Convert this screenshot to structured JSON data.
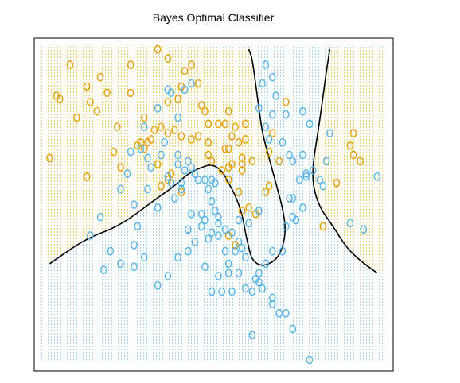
{
  "chart_data": {
    "type": "scatter",
    "title": "Bayes Optimal Classifier",
    "xlabel": "",
    "ylabel": "",
    "axes_visible": false,
    "grid": false,
    "legend": "none",
    "marker": "o",
    "xlim": [
      0,
      100
    ],
    "ylim": [
      0,
      100
    ],
    "colors": {
      "orange": "#E69F00",
      "blue": "#56B4E9",
      "boundary": "#000000",
      "frame": "#000000"
    },
    "background_regions": [
      {
        "class": "orange",
        "color": "#E69F00",
        "pattern": "dotted"
      },
      {
        "class": "blue",
        "color": "#56B4E9",
        "pattern": "dotted"
      }
    ],
    "decision_boundary": [
      {
        "name": "",
        "points": [
          [
            2,
            31
          ],
          [
            6,
            34
          ],
          [
            10,
            37
          ],
          [
            15,
            40
          ],
          [
            20,
            42
          ],
          [
            25,
            45
          ],
          [
            30,
            49
          ],
          [
            35,
            53
          ],
          [
            39,
            56
          ],
          [
            43,
            60
          ],
          [
            47,
            62
          ],
          [
            50,
            63
          ],
          [
            53,
            61
          ],
          [
            55,
            57
          ],
          [
            57,
            53
          ],
          [
            59,
            47
          ],
          [
            60,
            41
          ],
          [
            61,
            36
          ],
          [
            62,
            32
          ],
          [
            65,
            30
          ],
          [
            69,
            32
          ],
          [
            71,
            36
          ],
          [
            72,
            42
          ],
          [
            71,
            49
          ],
          [
            69,
            57
          ],
          [
            67,
            65
          ],
          [
            65,
            73
          ],
          [
            64,
            81
          ],
          [
            63,
            89
          ],
          [
            62,
            97
          ],
          [
            61,
            100
          ]
        ]
      },
      {
        "name": "",
        "points": [
          [
            99,
            28
          ],
          [
            95,
            31
          ],
          [
            90,
            36
          ],
          [
            86,
            43
          ],
          [
            82,
            49
          ],
          [
            80,
            56
          ],
          [
            80,
            63
          ],
          [
            81,
            70
          ],
          [
            82,
            77
          ],
          [
            83,
            85
          ],
          [
            84,
            93
          ],
          [
            85,
            100
          ]
        ]
      }
    ],
    "series": [
      {
        "name": "",
        "color": "#E69F00",
        "points": [
          [
            8,
            95
          ],
          [
            13,
            88
          ],
          [
            17,
            91
          ],
          [
            19,
            86
          ],
          [
            26,
            86
          ],
          [
            26,
            95
          ],
          [
            16,
            80
          ],
          [
            14,
            83
          ],
          [
            5,
            84
          ],
          [
            4,
            85
          ],
          [
            10,
            78
          ],
          [
            30,
            78
          ],
          [
            40,
            84
          ],
          [
            42,
            93
          ],
          [
            44,
            95
          ],
          [
            37,
            97
          ],
          [
            34,
            100
          ],
          [
            37,
            83
          ],
          [
            41,
            88
          ],
          [
            46,
            89
          ],
          [
            47,
            82
          ],
          [
            48,
            80
          ],
          [
            49,
            76
          ],
          [
            52,
            76
          ],
          [
            54,
            76
          ],
          [
            55,
            80
          ],
          [
            54,
            68
          ],
          [
            55,
            62
          ],
          [
            49,
            70
          ],
          [
            46,
            72
          ],
          [
            44,
            71
          ],
          [
            41,
            72
          ],
          [
            39,
            74
          ],
          [
            37,
            73
          ],
          [
            35,
            75
          ],
          [
            33,
            74
          ],
          [
            32,
            71
          ],
          [
            28,
            69
          ],
          [
            29,
            70
          ],
          [
            30,
            68
          ],
          [
            31,
            70
          ],
          [
            23,
            62
          ],
          [
            21,
            67
          ],
          [
            22,
            75
          ],
          [
            34,
            63
          ],
          [
            35,
            56
          ],
          [
            37,
            58
          ],
          [
            38,
            60
          ],
          [
            41,
            54
          ],
          [
            49,
            66
          ],
          [
            50,
            64
          ],
          [
            53,
            61
          ],
          [
            55,
            58
          ],
          [
            56,
            63
          ],
          [
            55,
            68
          ],
          [
            56,
            72
          ],
          [
            57,
            75
          ],
          [
            58,
            70
          ],
          [
            59,
            61
          ],
          [
            59,
            63
          ],
          [
            60,
            71
          ],
          [
            60,
            76
          ],
          [
            62,
            64
          ],
          [
            58,
            54
          ],
          [
            59,
            48
          ],
          [
            61,
            49
          ],
          [
            61,
            44
          ],
          [
            63,
            47
          ],
          [
            64,
            48
          ],
          [
            66,
            54
          ],
          [
            67,
            56
          ],
          [
            68,
            73
          ],
          [
            70,
            64
          ],
          [
            72,
            83
          ],
          [
            59,
            65
          ],
          [
            57,
            37
          ],
          [
            55,
            40
          ],
          [
            67,
            67
          ],
          [
            92,
            73
          ],
          [
            91,
            69
          ],
          [
            94,
            64
          ],
          [
            92,
            66
          ],
          [
            87,
            57
          ],
          [
            83,
            43
          ],
          [
            2,
            65
          ],
          [
            13,
            59
          ]
        ]
      },
      {
        "name": "",
        "color": "#56B4E9",
        "points": [
          [
            37,
            87
          ],
          [
            38,
            86
          ],
          [
            34,
            81
          ],
          [
            42,
            87
          ],
          [
            44,
            89
          ],
          [
            40,
            78
          ],
          [
            30,
            75
          ],
          [
            36,
            70
          ],
          [
            29,
            68
          ],
          [
            26,
            67
          ],
          [
            31,
            65
          ],
          [
            35,
            66
          ],
          [
            32,
            62
          ],
          [
            37,
            59
          ],
          [
            38,
            57
          ],
          [
            39,
            52
          ],
          [
            41,
            55
          ],
          [
            41,
            57
          ],
          [
            42,
            61
          ],
          [
            43,
            64
          ],
          [
            40,
            66
          ],
          [
            40,
            63
          ],
          [
            44,
            62
          ],
          [
            45,
            60
          ],
          [
            46,
            58
          ],
          [
            48,
            58
          ],
          [
            50,
            58
          ],
          [
            51,
            57
          ],
          [
            49,
            55
          ],
          [
            50,
            51
          ],
          [
            51,
            48
          ],
          [
            52,
            46
          ],
          [
            47,
            47
          ],
          [
            47,
            43
          ],
          [
            48,
            45
          ],
          [
            44,
            47
          ],
          [
            43,
            42
          ],
          [
            43,
            35
          ],
          [
            45,
            38
          ],
          [
            49,
            39
          ],
          [
            50,
            41
          ],
          [
            52,
            44
          ],
          [
            54,
            42
          ],
          [
            56,
            41
          ],
          [
            58,
            38
          ],
          [
            59,
            36
          ],
          [
            60,
            33
          ],
          [
            54,
            35
          ],
          [
            55,
            31
          ],
          [
            52,
            27
          ],
          [
            53,
            22
          ],
          [
            56,
            22
          ],
          [
            60,
            23
          ],
          [
            63,
            26
          ],
          [
            64,
            28
          ],
          [
            66,
            31
          ],
          [
            68,
            35
          ],
          [
            71,
            35
          ],
          [
            72,
            43
          ],
          [
            74,
            46
          ],
          [
            74,
            52
          ],
          [
            76,
            58
          ],
          [
            78,
            60
          ],
          [
            77,
            66
          ],
          [
            80,
            61
          ],
          [
            82,
            58
          ],
          [
            83,
            56
          ],
          [
            84,
            64
          ],
          [
            85,
            73
          ],
          [
            79,
            76
          ],
          [
            77,
            80
          ],
          [
            74,
            64
          ],
          [
            73,
            66
          ],
          [
            71,
            70
          ],
          [
            72,
            79
          ],
          [
            67,
            71
          ],
          [
            66,
            75
          ],
          [
            68,
            79
          ],
          [
            69,
            85
          ],
          [
            68,
            91
          ],
          [
            64,
            81
          ],
          [
            65,
            89
          ],
          [
            66,
            95
          ],
          [
            64,
            48
          ],
          [
            61,
            44
          ],
          [
            58,
            45
          ],
          [
            52,
            40
          ],
          [
            48,
            30
          ],
          [
            50,
            22
          ],
          [
            55,
            28
          ],
          [
            57,
            35
          ],
          [
            58,
            28
          ],
          [
            62,
            22
          ],
          [
            65,
            23
          ],
          [
            64,
            25
          ],
          [
            68,
            20
          ],
          [
            68,
            18
          ],
          [
            70,
            15
          ],
          [
            72,
            15
          ],
          [
            74,
            10
          ],
          [
            62,
            8
          ],
          [
            79,
            0
          ],
          [
            40,
            33
          ],
          [
            37,
            27
          ],
          [
            34,
            24
          ],
          [
            27,
            30
          ],
          [
            30,
            33
          ],
          [
            20,
            35
          ],
          [
            23,
            31
          ],
          [
            18,
            29
          ],
          [
            14,
            40
          ],
          [
            17,
            46
          ],
          [
            27,
            37
          ],
          [
            28,
            43
          ],
          [
            34,
            49
          ],
          [
            27,
            50
          ],
          [
            25,
            60
          ],
          [
            23,
            55
          ],
          [
            31,
            55
          ],
          [
            75,
            45
          ],
          [
            77,
            49
          ],
          [
            78,
            59
          ],
          [
            73,
            52
          ],
          [
            95,
            42
          ],
          [
            99,
            59
          ],
          [
            91,
            44
          ]
        ]
      }
    ]
  }
}
